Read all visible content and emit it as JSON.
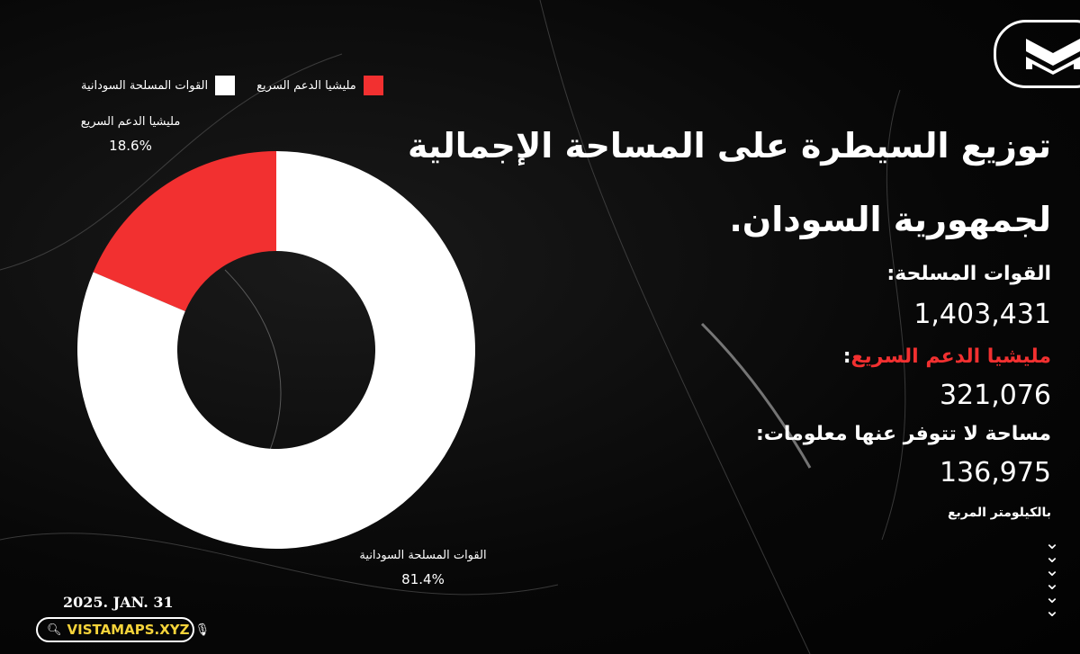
{
  "chart_data": {
    "type": "pie",
    "donut": true,
    "legend_position": "top",
    "categories": [
      "مليشيا الدعم السريع",
      "القوات المسلحة السودانية"
    ],
    "values": [
      18.6,
      81.4
    ],
    "value_labels": [
      "18.6%",
      "81.4%"
    ],
    "colors": [
      "#f23030",
      "#ffffff"
    ]
  },
  "title_line1": "توزيع السيطرة على المساحة الإجمالية",
  "title_line2": "لجمهورية السودان.",
  "stats": [
    {
      "label": "القوات المسلحة:",
      "value": "1,403,431",
      "color": "#ffffff"
    },
    {
      "label": "مليشيا الدعم السريع",
      "value": "321,076",
      "color": "#f23030"
    },
    {
      "label": "مساحة لا تتوفر عنها معلومات:",
      "value": "136,975",
      "color": "#ffffff"
    }
  ],
  "unit": "بالكيلومتر المربع",
  "date": "2025. JAN. 31",
  "site": "VISTAMAPS.XYZ",
  "site_color": "#f5d33a",
  "icons": [
    "logo-m-icon",
    "search-icon",
    "mic-icon",
    "chevrons-down-icon"
  ]
}
